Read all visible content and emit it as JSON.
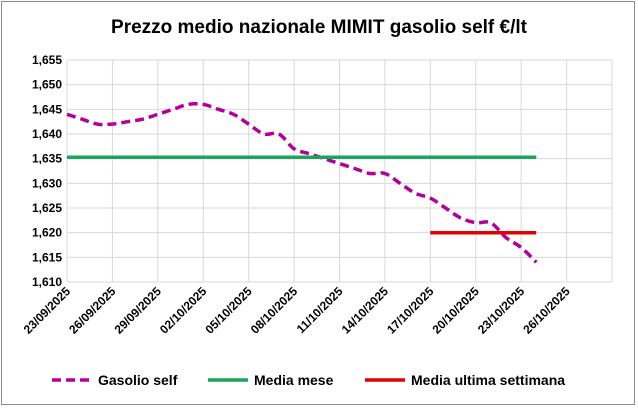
{
  "chart_data": {
    "type": "line",
    "title": "Prezzo medio nazionale MIMIT gasolio self €/lt",
    "xlabel": "",
    "ylabel": "",
    "x_ticks": [
      "23/09/2025",
      "26/09/2025",
      "29/09/2025",
      "02/10/2025",
      "05/10/2025",
      "08/10/2025",
      "11/10/2025",
      "14/10/2025",
      "17/10/2025",
      "20/10/2025",
      "23/10/2025",
      "26/10/2025"
    ],
    "x_range": [
      "2025-09-23",
      "2025-10-29"
    ],
    "y_ticks": [
      "1,610",
      "1,615",
      "1,620",
      "1,625",
      "1,630",
      "1,635",
      "1,640",
      "1,645",
      "1,650",
      "1,655"
    ],
    "ylim": [
      1.61,
      1.655
    ],
    "grid": {
      "horizontal": true,
      "vertical": true
    },
    "legend_position": "bottom",
    "series": [
      {
        "name": "Gasolio self",
        "color": "#b3009c",
        "style": "dashed",
        "points": [
          [
            "2025-09-23",
            1.644
          ],
          [
            "2025-09-24",
            1.643
          ],
          [
            "2025-09-25",
            1.642
          ],
          [
            "2025-09-26",
            1.642
          ],
          [
            "2025-09-27",
            1.6425
          ],
          [
            "2025-09-28",
            1.643
          ],
          [
            "2025-09-29",
            1.644
          ],
          [
            "2025-09-30",
            1.645
          ],
          [
            "2025-10-01",
            1.646
          ],
          [
            "2025-10-02",
            1.646
          ],
          [
            "2025-10-03",
            1.645
          ],
          [
            "2025-10-04",
            1.644
          ],
          [
            "2025-10-05",
            1.642
          ],
          [
            "2025-10-06",
            1.64
          ],
          [
            "2025-10-07",
            1.64
          ],
          [
            "2025-10-08",
            1.637
          ],
          [
            "2025-10-09",
            1.636
          ],
          [
            "2025-10-10",
            1.635
          ],
          [
            "2025-10-11",
            1.634
          ],
          [
            "2025-10-12",
            1.633
          ],
          [
            "2025-10-13",
            1.632
          ],
          [
            "2025-10-14",
            1.632
          ],
          [
            "2025-10-15",
            1.63
          ],
          [
            "2025-10-16",
            1.628
          ],
          [
            "2025-10-17",
            1.627
          ],
          [
            "2025-10-18",
            1.625
          ],
          [
            "2025-10-19",
            1.623
          ],
          [
            "2025-10-20",
            1.622
          ],
          [
            "2025-10-21",
            1.622
          ],
          [
            "2025-10-22",
            1.619
          ],
          [
            "2025-10-23",
            1.617
          ],
          [
            "2025-10-24",
            1.614
          ]
        ]
      },
      {
        "name": "Media mese",
        "color": "#1aa65a",
        "style": "solid",
        "points": [
          [
            "2025-09-23",
            1.6353
          ],
          [
            "2025-10-24",
            1.6353
          ]
        ]
      },
      {
        "name": "Media ultima settimana",
        "color": "#e00000",
        "style": "solid",
        "points": [
          [
            "2025-10-17",
            1.62
          ],
          [
            "2025-10-24",
            1.62
          ]
        ]
      }
    ]
  }
}
